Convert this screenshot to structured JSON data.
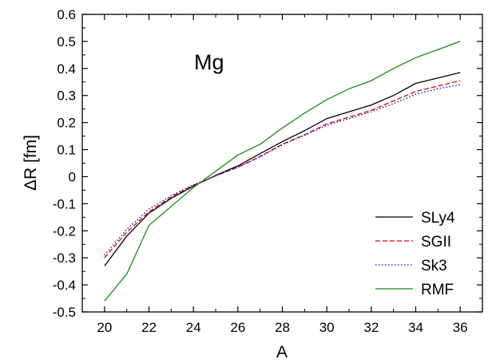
{
  "chart_data": {
    "type": "line",
    "title": "",
    "xlabel": "A",
    "ylabel": "ΔR [fm]",
    "xlim": [
      19,
      37
    ],
    "ylim": [
      -0.5,
      0.6
    ],
    "xticks": [
      20,
      22,
      24,
      26,
      28,
      30,
      32,
      34,
      36
    ],
    "xtick_labels": [
      "20",
      "22",
      "24",
      "26",
      "28",
      "30",
      "32",
      "34",
      "36"
    ],
    "yticks": [
      -0.5,
      -0.4,
      -0.3,
      -0.2,
      -0.1,
      0,
      0.1,
      0.2,
      0.3,
      0.4,
      0.5,
      0.6
    ],
    "ytick_labels": [
      "-0.5",
      "-0.4",
      "-0.3",
      "-0.2",
      "-0.1",
      "0",
      "0.1",
      "0.2",
      "0.3",
      "0.4",
      "0.5",
      "0.6"
    ],
    "grid": false,
    "legend_position": "bottom-right",
    "annotation": "Mg",
    "x": [
      20,
      21,
      22,
      23,
      24,
      25,
      26,
      27,
      28,
      29,
      30,
      31,
      32,
      33,
      34,
      35,
      36
    ],
    "series": [
      {
        "name": "SLy4",
        "color": "#000000",
        "dash": "solid",
        "values": [
          -0.33,
          -0.22,
          -0.135,
          -0.08,
          -0.035,
          0.005,
          0.04,
          0.085,
          0.13,
          0.17,
          0.215,
          0.24,
          0.265,
          0.3,
          0.345,
          0.365,
          0.385
        ]
      },
      {
        "name": "SGII",
        "color": "#e00000",
        "dash": "dashed",
        "values": [
          -0.3,
          -0.205,
          -0.13,
          -0.075,
          -0.032,
          0.003,
          0.035,
          0.075,
          0.12,
          0.155,
          0.195,
          0.22,
          0.245,
          0.28,
          0.315,
          0.335,
          0.355
        ]
      },
      {
        "name": "Sk3",
        "color": "#1010d0",
        "dash": "dotted",
        "values": [
          -0.29,
          -0.195,
          -0.12,
          -0.07,
          -0.03,
          0.003,
          0.035,
          0.073,
          0.118,
          0.153,
          0.19,
          0.215,
          0.24,
          0.27,
          0.305,
          0.325,
          0.34
        ]
      },
      {
        "name": "RMF",
        "color": "#1a8a1a",
        "dash": "solid",
        "values": [
          -0.46,
          -0.36,
          -0.18,
          -0.11,
          -0.04,
          0.02,
          0.08,
          0.12,
          0.18,
          0.235,
          0.285,
          0.325,
          0.355,
          0.4,
          0.44,
          0.47,
          0.5
        ]
      }
    ]
  }
}
